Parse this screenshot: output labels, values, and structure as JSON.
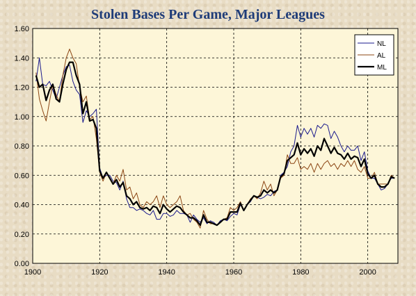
{
  "chart_data": {
    "type": "line",
    "title": "Stolen Bases Per Game, Major Leagues",
    "xlabel": "",
    "ylabel": "",
    "xlim": [
      1900,
      2009
    ],
    "ylim": [
      0,
      1.6
    ],
    "x_ticks": [
      "1900",
      "1920",
      "1940",
      "1960",
      "1980",
      "2000"
    ],
    "y_ticks": [
      "0.00",
      "0.20",
      "0.40",
      "0.60",
      "0.80",
      "1.00",
      "1.20",
      "1.40",
      "1.60"
    ],
    "grid": true,
    "legend_position": "top-right",
    "plot_background": "#fdf6d8",
    "series": [
      {
        "name": "NL",
        "color": "#1a1a8c",
        "x": [
          1901,
          1902,
          1903,
          1904,
          1905,
          1906,
          1907,
          1908,
          1909,
          1910,
          1911,
          1912,
          1913,
          1914,
          1915,
          1916,
          1917,
          1918,
          1919,
          1920,
          1921,
          1922,
          1923,
          1924,
          1925,
          1926,
          1927,
          1928,
          1929,
          1930,
          1931,
          1932,
          1933,
          1934,
          1935,
          1936,
          1937,
          1938,
          1939,
          1940,
          1941,
          1942,
          1943,
          1944,
          1945,
          1946,
          1947,
          1948,
          1949,
          1950,
          1951,
          1952,
          1953,
          1954,
          1955,
          1956,
          1957,
          1958,
          1959,
          1960,
          1961,
          1962,
          1963,
          1964,
          1965,
          1966,
          1967,
          1968,
          1969,
          1970,
          1971,
          1972,
          1973,
          1974,
          1975,
          1976,
          1977,
          1978,
          1979,
          1980,
          1981,
          1982,
          1983,
          1984,
          1985,
          1986,
          1987,
          1988,
          1989,
          1990,
          1991,
          1992,
          1993,
          1994,
          1995,
          1996,
          1997,
          1998,
          1999,
          2000,
          2001,
          2002,
          2003,
          2004,
          2005,
          2006,
          2007,
          2008
        ],
        "values": [
          1.24,
          1.4,
          1.22,
          1.21,
          1.24,
          1.18,
          1.12,
          1.2,
          1.28,
          1.34,
          1.35,
          1.24,
          1.18,
          1.15,
          0.96,
          1.04,
          1.0,
          1.02,
          1.05,
          0.65,
          0.58,
          0.6,
          0.6,
          0.56,
          0.55,
          0.5,
          0.56,
          0.44,
          0.38,
          0.38,
          0.36,
          0.37,
          0.36,
          0.34,
          0.33,
          0.36,
          0.3,
          0.3,
          0.34,
          0.34,
          0.32,
          0.33,
          0.36,
          0.34,
          0.34,
          0.33,
          0.28,
          0.33,
          0.3,
          0.28,
          0.31,
          0.27,
          0.29,
          0.28,
          0.26,
          0.29,
          0.3,
          0.29,
          0.32,
          0.34,
          0.33,
          0.4,
          0.36,
          0.4,
          0.42,
          0.46,
          0.45,
          0.44,
          0.45,
          0.47,
          0.46,
          0.49,
          0.5,
          0.6,
          0.62,
          0.66,
          0.76,
          0.8,
          0.94,
          0.86,
          0.92,
          0.88,
          0.92,
          0.86,
          0.94,
          0.92,
          0.95,
          0.94,
          0.85,
          0.9,
          0.86,
          0.8,
          0.76,
          0.8,
          0.77,
          0.77,
          0.8,
          0.7,
          0.76,
          0.63,
          0.58,
          0.58,
          0.54,
          0.5,
          0.51,
          0.54,
          0.58,
          0.58
        ]
      },
      {
        "name": "AL",
        "color": "#8b4513",
        "x": [
          1901,
          1902,
          1903,
          1904,
          1905,
          1906,
          1907,
          1908,
          1909,
          1910,
          1911,
          1912,
          1913,
          1914,
          1915,
          1916,
          1917,
          1918,
          1919,
          1920,
          1921,
          1922,
          1923,
          1924,
          1925,
          1926,
          1927,
          1928,
          1929,
          1930,
          1931,
          1932,
          1933,
          1934,
          1935,
          1936,
          1937,
          1938,
          1939,
          1940,
          1941,
          1942,
          1943,
          1944,
          1945,
          1946,
          1947,
          1948,
          1949,
          1950,
          1951,
          1952,
          1953,
          1954,
          1955,
          1956,
          1957,
          1958,
          1959,
          1960,
          1961,
          1962,
          1963,
          1964,
          1965,
          1966,
          1967,
          1968,
          1969,
          1970,
          1971,
          1972,
          1973,
          1974,
          1975,
          1976,
          1977,
          1978,
          1979,
          1980,
          1981,
          1982,
          1983,
          1984,
          1985,
          1986,
          1987,
          1988,
          1989,
          1990,
          1991,
          1992,
          1993,
          1994,
          1995,
          1996,
          1997,
          1998,
          1999,
          2000,
          2001,
          2002,
          2003,
          2004,
          2005,
          2006,
          2007,
          2008
        ],
        "values": [
          1.3,
          1.12,
          1.04,
          0.97,
          1.1,
          1.22,
          1.15,
          1.1,
          1.28,
          1.4,
          1.46,
          1.4,
          1.36,
          1.2,
          1.1,
          1.14,
          0.98,
          1.0,
          0.85,
          0.62,
          0.56,
          0.62,
          0.58,
          0.54,
          0.6,
          0.56,
          0.64,
          0.5,
          0.52,
          0.44,
          0.48,
          0.4,
          0.38,
          0.42,
          0.4,
          0.42,
          0.46,
          0.38,
          0.46,
          0.4,
          0.38,
          0.4,
          0.42,
          0.46,
          0.36,
          0.33,
          0.34,
          0.3,
          0.28,
          0.24,
          0.36,
          0.3,
          0.27,
          0.27,
          0.26,
          0.28,
          0.3,
          0.31,
          0.38,
          0.36,
          0.38,
          0.42,
          0.36,
          0.4,
          0.44,
          0.46,
          0.44,
          0.48,
          0.56,
          0.5,
          0.54,
          0.46,
          0.5,
          0.58,
          0.6,
          0.74,
          0.68,
          0.68,
          0.72,
          0.64,
          0.66,
          0.64,
          0.68,
          0.62,
          0.68,
          0.64,
          0.68,
          0.7,
          0.66,
          0.68,
          0.64,
          0.68,
          0.66,
          0.7,
          0.66,
          0.7,
          0.64,
          0.62,
          0.66,
          0.58,
          0.58,
          0.62,
          0.54,
          0.54,
          0.54,
          0.54,
          0.6,
          0.58
        ]
      },
      {
        "name": "ML",
        "color": "#000000",
        "x": [
          1901,
          1902,
          1903,
          1904,
          1905,
          1906,
          1907,
          1908,
          1909,
          1910,
          1911,
          1912,
          1913,
          1914,
          1915,
          1916,
          1917,
          1918,
          1919,
          1920,
          1921,
          1922,
          1923,
          1924,
          1925,
          1926,
          1927,
          1928,
          1929,
          1930,
          1931,
          1932,
          1933,
          1934,
          1935,
          1936,
          1937,
          1938,
          1939,
          1940,
          1941,
          1942,
          1943,
          1944,
          1945,
          1946,
          1947,
          1948,
          1949,
          1950,
          1951,
          1952,
          1953,
          1954,
          1955,
          1956,
          1957,
          1958,
          1959,
          1960,
          1961,
          1962,
          1963,
          1964,
          1965,
          1966,
          1967,
          1968,
          1969,
          1970,
          1971,
          1972,
          1973,
          1974,
          1975,
          1976,
          1977,
          1978,
          1979,
          1980,
          1981,
          1982,
          1983,
          1984,
          1985,
          1986,
          1987,
          1988,
          1989,
          1990,
          1991,
          1992,
          1993,
          1994,
          1995,
          1996,
          1997,
          1998,
          1999,
          2000,
          2001,
          2002,
          2003,
          2004,
          2005,
          2006,
          2007,
          2008
        ],
        "values": [
          1.28,
          1.2,
          1.22,
          1.11,
          1.18,
          1.22,
          1.12,
          1.1,
          1.22,
          1.32,
          1.37,
          1.37,
          1.28,
          1.22,
          1.02,
          1.1,
          0.97,
          0.98,
          0.92,
          0.63,
          0.58,
          0.62,
          0.58,
          0.54,
          0.57,
          0.52,
          0.55,
          0.46,
          0.44,
          0.4,
          0.42,
          0.38,
          0.37,
          0.38,
          0.36,
          0.39,
          0.38,
          0.34,
          0.4,
          0.37,
          0.35,
          0.37,
          0.39,
          0.38,
          0.35,
          0.33,
          0.31,
          0.31,
          0.29,
          0.26,
          0.33,
          0.28,
          0.28,
          0.27,
          0.26,
          0.28,
          0.3,
          0.3,
          0.35,
          0.35,
          0.35,
          0.41,
          0.36,
          0.4,
          0.43,
          0.46,
          0.45,
          0.46,
          0.5,
          0.48,
          0.5,
          0.48,
          0.5,
          0.59,
          0.61,
          0.7,
          0.72,
          0.74,
          0.82,
          0.74,
          0.78,
          0.75,
          0.78,
          0.73,
          0.8,
          0.77,
          0.85,
          0.8,
          0.75,
          0.79,
          0.75,
          0.74,
          0.71,
          0.75,
          0.71,
          0.73,
          0.72,
          0.66,
          0.71,
          0.61,
          0.58,
          0.6,
          0.54,
          0.52,
          0.52,
          0.54,
          0.59,
          0.58
        ]
      }
    ]
  }
}
